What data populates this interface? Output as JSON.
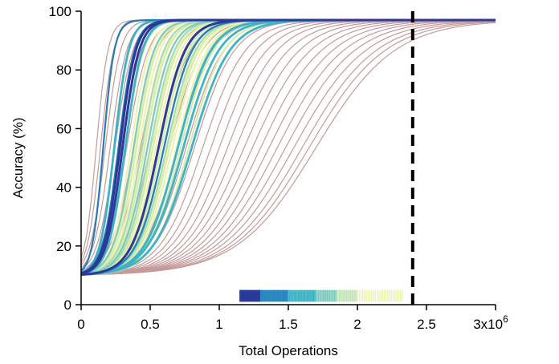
{
  "chart_data": {
    "type": "line",
    "title": "",
    "xlabel": "Total Operations",
    "ylabel": "Accuracy (%)",
    "xlim": [
      0,
      3000000
    ],
    "ylim": [
      0,
      100
    ],
    "x_ticks": [
      {
        "value": 0,
        "label": "0"
      },
      {
        "value": 500000,
        "label": "0.5"
      },
      {
        "value": 1000000,
        "label": "1"
      },
      {
        "value": 1500000,
        "label": "1.5"
      },
      {
        "value": 2000000,
        "label": "2"
      },
      {
        "value": 2500000,
        "label": "2.5"
      },
      {
        "value": 3000000,
        "label": "3"
      }
    ],
    "x_multiplier_label": "x10",
    "x_multiplier_exponent": "6",
    "y_ticks": [
      {
        "value": 0,
        "label": "0"
      },
      {
        "value": 20,
        "label": "20"
      },
      {
        "value": 40,
        "label": "40"
      },
      {
        "value": 60,
        "label": "60"
      },
      {
        "value": 80,
        "label": "80"
      },
      {
        "value": 100,
        "label": "100"
      }
    ],
    "grid": false,
    "legend": "none",
    "baseline_accuracy": 10,
    "plateau_accuracy": 97,
    "reference_line": {
      "x": 2400000,
      "style": "dashed",
      "color": "#000000"
    },
    "series_groups": [
      {
        "color": "#c49a9a",
        "width": 1.2,
        "curves": [
          {
            "mid": 110000,
            "scale": 42000
          },
          {
            "mid": 140000,
            "scale": 48000
          },
          {
            "mid": 175000,
            "scale": 55000
          },
          {
            "mid": 210000,
            "scale": 60000
          },
          {
            "mid": 245000,
            "scale": 65000
          },
          {
            "mid": 290000,
            "scale": 72000
          },
          {
            "mid": 330000,
            "scale": 78000
          },
          {
            "mid": 380000,
            "scale": 85000
          },
          {
            "mid": 430000,
            "scale": 92000
          },
          {
            "mid": 500000,
            "scale": 100000
          },
          {
            "mid": 570000,
            "scale": 110000
          },
          {
            "mid": 640000,
            "scale": 120000
          },
          {
            "mid": 700000,
            "scale": 128000
          },
          {
            "mid": 760000,
            "scale": 136000
          },
          {
            "mid": 820000,
            "scale": 145000
          },
          {
            "mid": 880000,
            "scale": 155000
          },
          {
            "mid": 940000,
            "scale": 163000
          },
          {
            "mid": 1000000,
            "scale": 172000
          },
          {
            "mid": 1060000,
            "scale": 180000
          },
          {
            "mid": 1120000,
            "scale": 190000
          },
          {
            "mid": 1180000,
            "scale": 200000
          },
          {
            "mid": 1240000,
            "scale": 210000
          },
          {
            "mid": 1300000,
            "scale": 220000
          },
          {
            "mid": 1360000,
            "scale": 230000
          },
          {
            "mid": 1420000,
            "scale": 240000
          },
          {
            "mid": 1480000,
            "scale": 250000
          },
          {
            "mid": 1540000,
            "scale": 260000
          },
          {
            "mid": 1600000,
            "scale": 268000
          },
          {
            "mid": 1650000,
            "scale": 275000
          },
          {
            "mid": 1700000,
            "scale": 285000
          }
        ]
      },
      {
        "color": "#eef3b2",
        "width": 2.2,
        "curves": [
          {
            "mid": 360000,
            "scale": 70000
          },
          {
            "mid": 390000,
            "scale": 72000
          },
          {
            "mid": 420000,
            "scale": 76000
          },
          {
            "mid": 450000,
            "scale": 80000
          },
          {
            "mid": 480000,
            "scale": 84000
          },
          {
            "mid": 510000,
            "scale": 88000
          },
          {
            "mid": 540000,
            "scale": 92000
          },
          {
            "mid": 570000,
            "scale": 96000
          },
          {
            "mid": 600000,
            "scale": 100000
          },
          {
            "mid": 630000,
            "scale": 104000
          },
          {
            "mid": 660000,
            "scale": 108000
          },
          {
            "mid": 690000,
            "scale": 112000
          }
        ]
      },
      {
        "color": "#d8ecb0",
        "width": 2.2,
        "curves": [
          {
            "mid": 320000,
            "scale": 66000
          },
          {
            "mid": 400000,
            "scale": 74000
          },
          {
            "mid": 460000,
            "scale": 82000
          },
          {
            "mid": 520000,
            "scale": 90000
          },
          {
            "mid": 580000,
            "scale": 98000
          },
          {
            "mid": 640000,
            "scale": 106000
          },
          {
            "mid": 720000,
            "scale": 118000
          },
          {
            "mid": 780000,
            "scale": 128000
          }
        ]
      },
      {
        "color": "#a6dbb8",
        "width": 2.2,
        "curves": [
          {
            "mid": 440000,
            "scale": 80000
          },
          {
            "mid": 500000,
            "scale": 88000
          },
          {
            "mid": 560000,
            "scale": 96000
          },
          {
            "mid": 620000,
            "scale": 104000
          },
          {
            "mid": 700000,
            "scale": 116000
          }
        ]
      },
      {
        "color": "#7ccabd",
        "width": 2.2,
        "curves": [
          {
            "mid": 380000,
            "scale": 74000
          },
          {
            "mid": 480000,
            "scale": 86000
          },
          {
            "mid": 600000,
            "scale": 100000
          }
        ]
      },
      {
        "color": "#3fb2c4",
        "width": 2.8,
        "curves": [
          {
            "mid": 240000,
            "scale": 52000
          },
          {
            "mid": 320000,
            "scale": 62000
          },
          {
            "mid": 700000,
            "scale": 120000
          },
          {
            "mid": 740000,
            "scale": 128000
          },
          {
            "mid": 800000,
            "scale": 138000
          }
        ]
      },
      {
        "color": "#2a7ab6",
        "width": 2.2,
        "curves": [
          {
            "mid": 160000,
            "scale": 40000
          },
          {
            "mid": 270000,
            "scale": 58000
          },
          {
            "mid": 600000,
            "scale": 102000
          }
        ]
      },
      {
        "color": "#2b3a98",
        "width": 3.0,
        "curves": [
          {
            "mid": 280000,
            "scale": 58000
          },
          {
            "mid": 300000,
            "scale": 60000
          },
          {
            "mid": 560000,
            "scale": 96000
          }
        ]
      }
    ],
    "rug": {
      "y_range": [
        1,
        5
      ],
      "segments": [
        {
          "from": 1150000,
          "to": 1300000,
          "color": "#2b3a98",
          "step": 5000
        },
        {
          "from": 1300000,
          "to": 1500000,
          "color": "#2a86bf",
          "step": 7000
        },
        {
          "from": 1500000,
          "to": 1700000,
          "color": "#3fb2c4",
          "step": 8000
        },
        {
          "from": 1700000,
          "to": 1850000,
          "color": "#7ccabd",
          "step": 9000
        },
        {
          "from": 1850000,
          "to": 2000000,
          "color": "#bfe3b5",
          "step": 10000
        },
        {
          "from": 2000000,
          "to": 2330000,
          "color": "#eef3b2",
          "step": 13000
        }
      ]
    }
  }
}
